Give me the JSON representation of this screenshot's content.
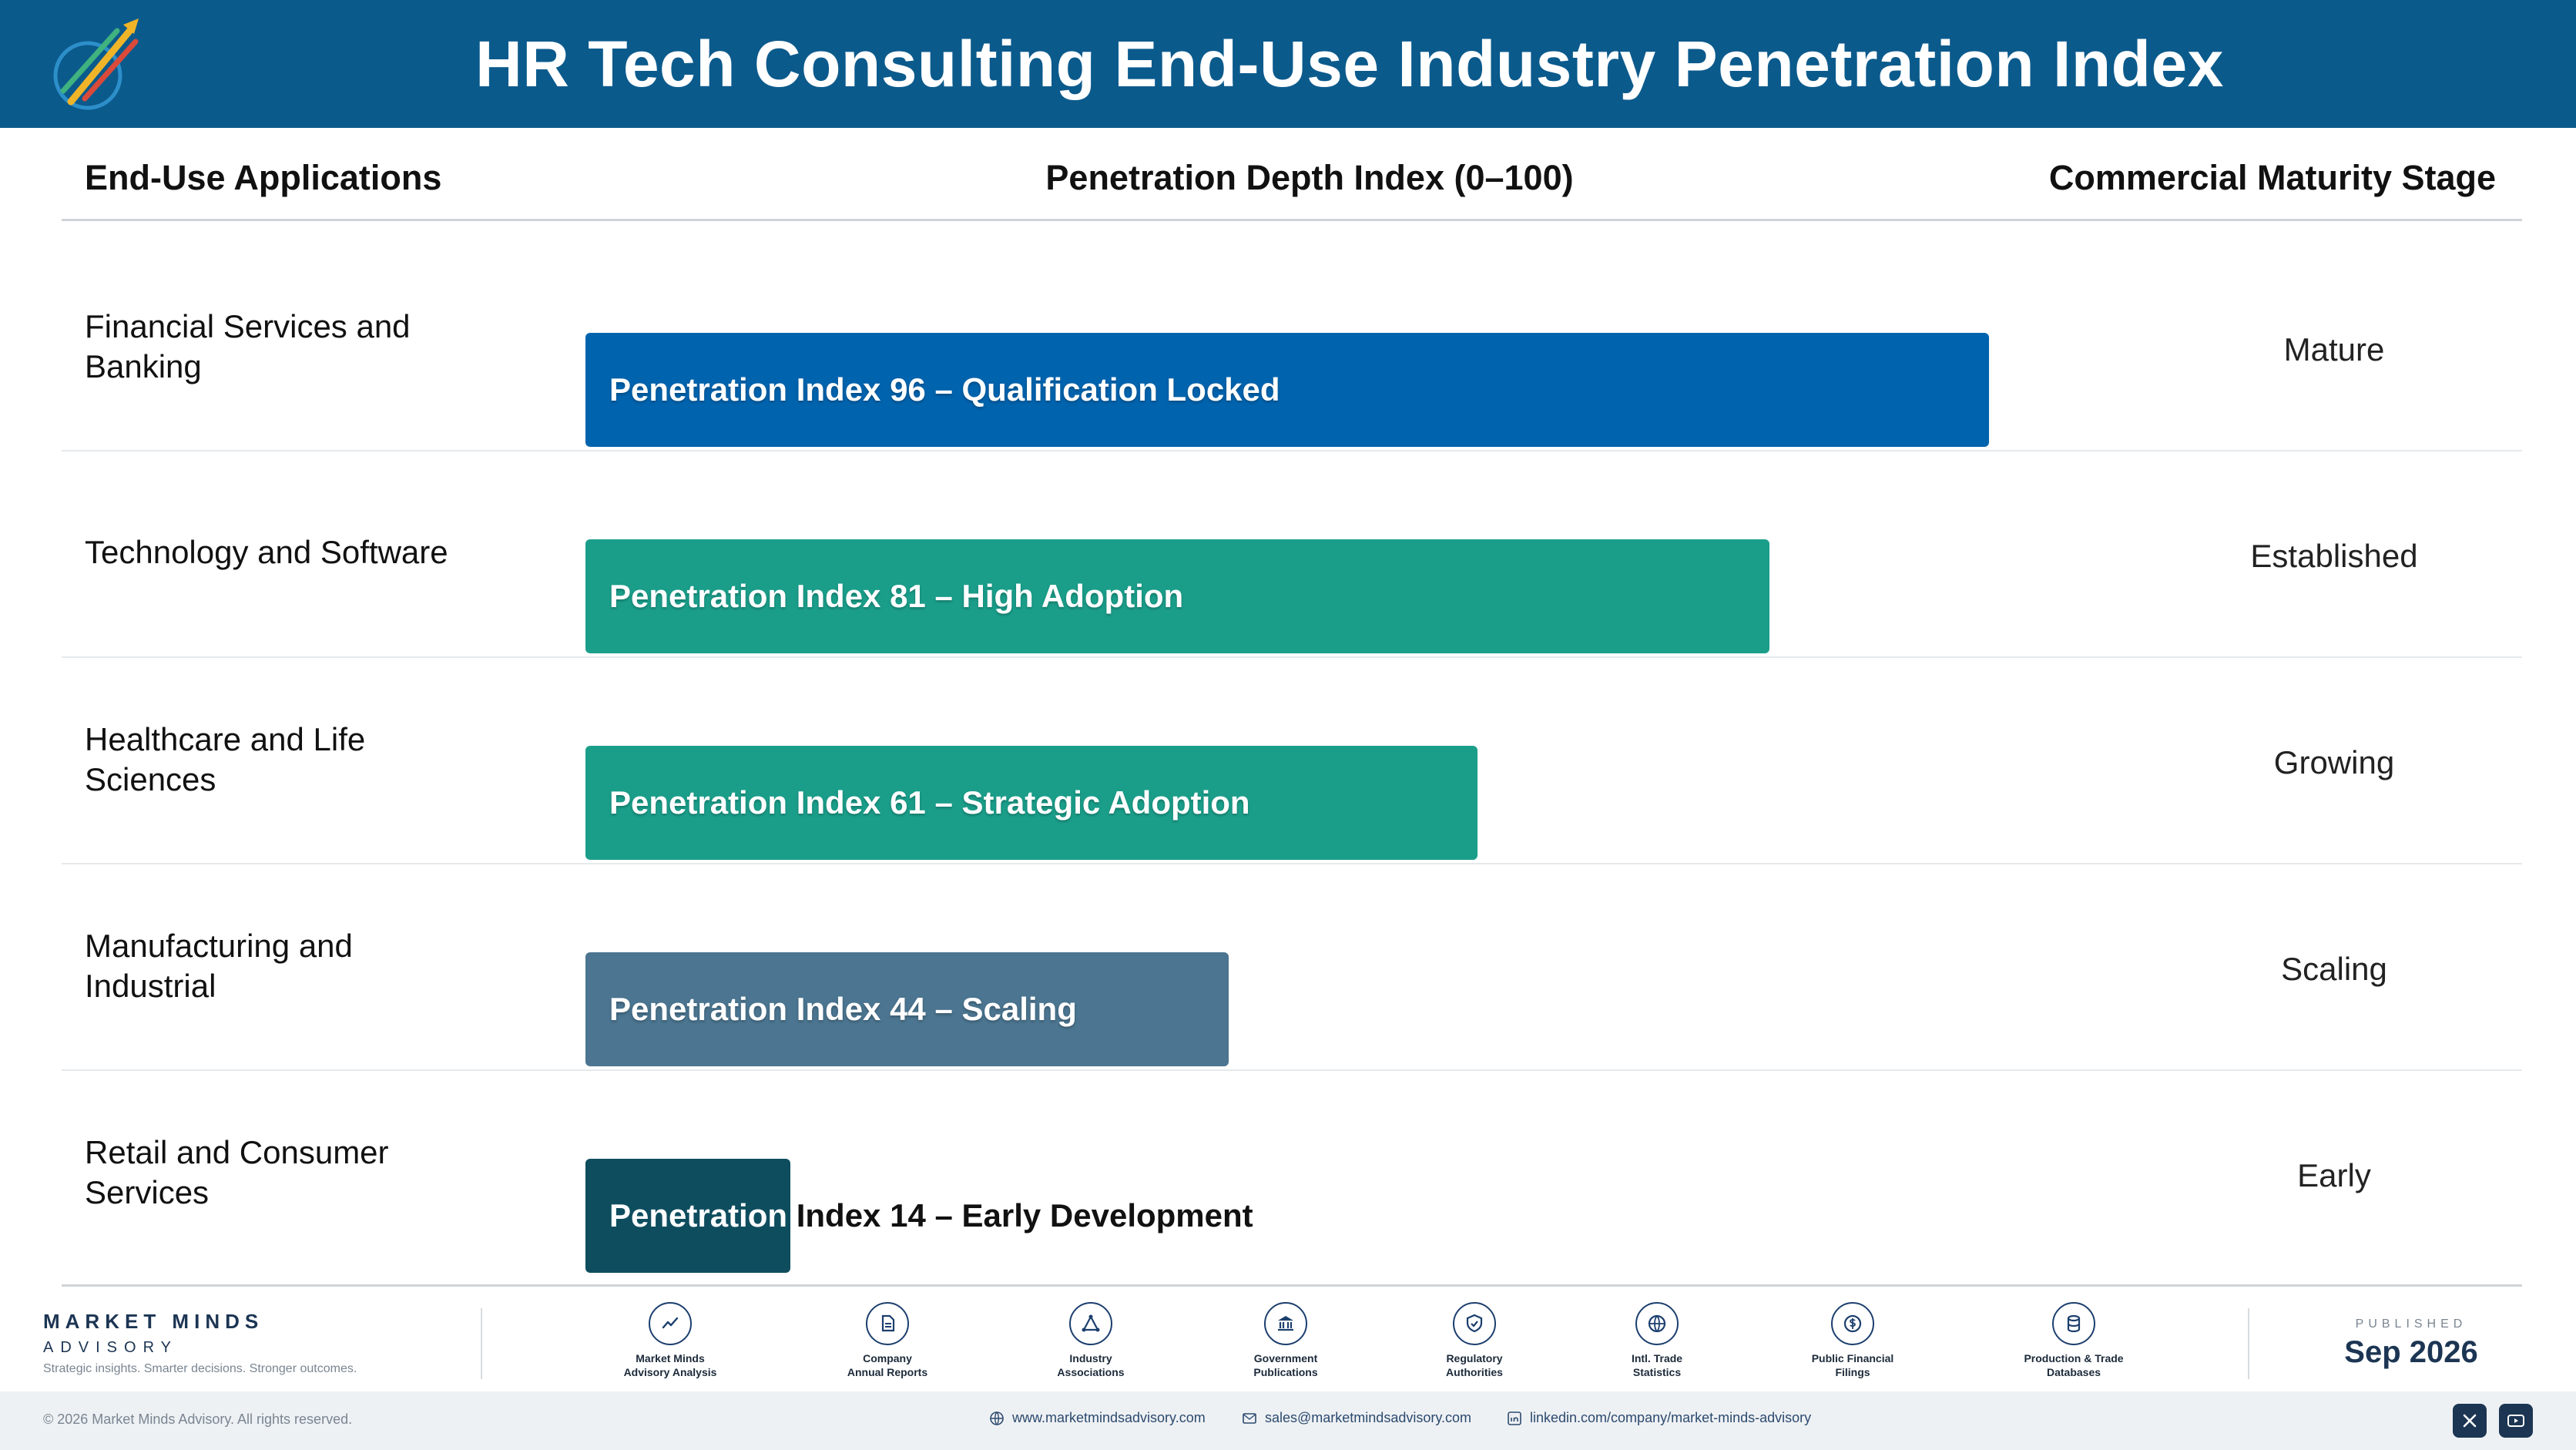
{
  "title": "HR Tech Consulting End-Use Industry Penetration Index",
  "columns": {
    "applications": "End-Use Applications",
    "index": "Penetration Depth Index (0–100)",
    "stage": "Commercial Maturity Stage"
  },
  "chart_data": {
    "type": "bar",
    "orientation": "horizontal",
    "title": "HR Tech Consulting End-Use Industry Penetration Index",
    "xlabel": "Penetration Depth Index (0–100)",
    "ylabel": "End-Use Applications",
    "xlim": [
      0,
      100
    ],
    "grid": false,
    "categories": [
      "Financial Services and Banking",
      "Technology and Software",
      "Healthcare and Life Sciences",
      "Manufacturing and Industrial",
      "Retail and Consumer Services"
    ],
    "values": [
      96,
      81,
      61,
      44,
      14
    ],
    "rows": [
      {
        "application": "Financial Services and Banking",
        "value": 96,
        "bar_label": "Penetration Index 96 – Qualification Locked",
        "stage": "Mature",
        "color": "#0063ad"
      },
      {
        "application": "Technology and Software",
        "value": 81,
        "bar_label": "Penetration Index 81 – High Adoption",
        "stage": "Established",
        "color": "#1a9e8a"
      },
      {
        "application": "Healthcare and Life Sciences",
        "value": 61,
        "bar_label": "Penetration Index 61 – Strategic Adoption",
        "stage": "Growing",
        "color": "#1a9e8a"
      },
      {
        "application": "Manufacturing and Industrial",
        "value": 44,
        "bar_label": "Penetration Index 44 – Scaling",
        "stage": "Scaling",
        "color": "#4b7590"
      },
      {
        "application": "Retail and Consumer Services",
        "value": 14,
        "bar_label": "Penetration Index 14 – Early Development",
        "stage": "Early",
        "color": "#0e4d5e"
      }
    ]
  },
  "footer": {
    "brand_name": "MARKET MINDS",
    "brand_sub": "ADVISORY",
    "brand_tag": "Strategic insights. Smarter decisions. Stronger outcomes.",
    "sources": [
      {
        "label": "Market Minds\nAdvisory Analysis",
        "icon": "chart-line-icon"
      },
      {
        "label": "Company\nAnnual Reports",
        "icon": "document-icon"
      },
      {
        "label": "Industry\nAssociations",
        "icon": "network-icon"
      },
      {
        "label": "Government\nPublications",
        "icon": "government-building-icon"
      },
      {
        "label": "Regulatory\nAuthorities",
        "icon": "shield-check-icon"
      },
      {
        "label": "Intl. Trade\nStatistics",
        "icon": "globe-icon"
      },
      {
        "label": "Public Financial\nFilings",
        "icon": "dollar-coin-icon"
      },
      {
        "label": "Production & Trade\nDatabases",
        "icon": "database-icon"
      }
    ],
    "published_label": "PUBLISHED",
    "published_date": "Sep 2026",
    "copyright": "© 2026 Market Minds Advisory. All rights reserved.",
    "website": "www.marketmindsadvisory.com",
    "email": "sales@marketmindsadvisory.com",
    "linkedin": "linkedin.com/company/market-minds-advisory"
  }
}
